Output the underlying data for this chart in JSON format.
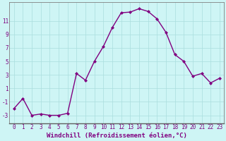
{
  "x": [
    0,
    1,
    2,
    3,
    4,
    5,
    6,
    7,
    8,
    9,
    10,
    11,
    12,
    13,
    14,
    15,
    16,
    17,
    18,
    19,
    20,
    21,
    22,
    23
  ],
  "y": [
    -2,
    -0.5,
    -3,
    -2.8,
    -3,
    -3,
    -2.7,
    3.2,
    2.2,
    5.0,
    7.2,
    10.0,
    12.2,
    12.3,
    12.8,
    12.4,
    11.3,
    9.3,
    6.0,
    5.0,
    2.8,
    3.2,
    1.8,
    2.5
  ],
  "line_color": "#800080",
  "marker": "D",
  "markersize": 2,
  "linewidth": 1.0,
  "background_color": "#cef5f5",
  "grid_color": "#aadddd",
  "xlabel": "Windchill (Refroidissement éolien,°C)",
  "xlabel_fontsize": 6.5,
  "xlabel_color": "#800080",
  "yticks": [
    -3,
    -1,
    1,
    3,
    5,
    7,
    9,
    11
  ],
  "xlim": [
    -0.5,
    23.5
  ],
  "ylim": [
    -4.2,
    13.8
  ],
  "tick_fontsize": 5.5,
  "tick_color": "#800080",
  "spine_color": "#808080",
  "spine_bottom_color": "#606060"
}
